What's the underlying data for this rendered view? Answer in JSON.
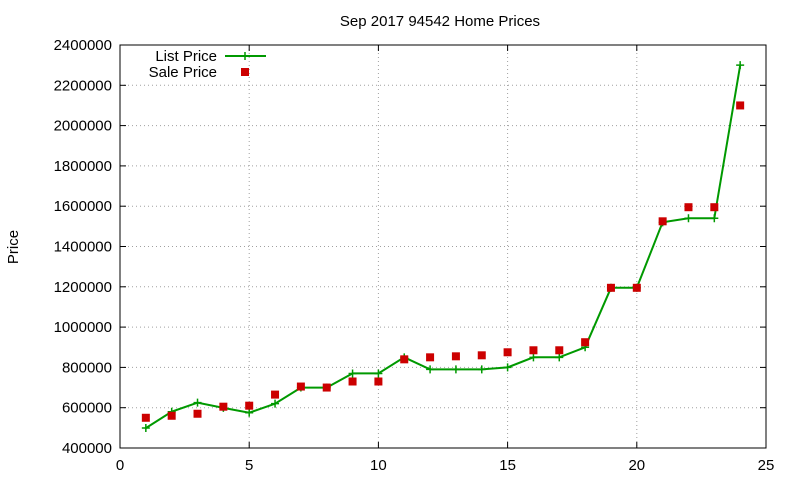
{
  "chart_data": {
    "type": "line",
    "title": "Sep 2017 94542 Home Prices",
    "xlabel": "",
    "ylabel": "Price",
    "xlim": [
      0,
      25
    ],
    "ylim": [
      400000,
      2400000
    ],
    "xticks": [
      "0",
      "5",
      "10",
      "15",
      "20",
      "25"
    ],
    "yticks": [
      "400000",
      "600000",
      "800000",
      "1000000",
      "1200000",
      "1400000",
      "1600000",
      "1800000",
      "2000000",
      "2200000",
      "2400000"
    ],
    "grid": true,
    "legend_position": "top-left",
    "x": [
      1,
      2,
      3,
      4,
      5,
      6,
      7,
      8,
      9,
      10,
      11,
      12,
      13,
      14,
      15,
      16,
      17,
      18,
      19,
      20,
      21,
      22,
      23,
      24
    ],
    "series": [
      {
        "name": "List Price",
        "style": "linespoints",
        "color": "#009900",
        "values": [
          499000,
          580000,
          625000,
          599000,
          575000,
          620000,
          700000,
          700000,
          770000,
          770000,
          850000,
          790000,
          790000,
          790000,
          800000,
          850000,
          850000,
          900000,
          1195000,
          1195000,
          1520000,
          1540000,
          1540000,
          2300000
        ]
      },
      {
        "name": "Sale Price",
        "style": "points",
        "color": "#cc0000",
        "values": [
          550000,
          560000,
          570000,
          605000,
          610000,
          665000,
          705000,
          700000,
          730000,
          730000,
          840000,
          850000,
          855000,
          860000,
          875000,
          885000,
          885000,
          925000,
          1195000,
          1195000,
          1525000,
          1595000,
          1595000,
          2100000
        ]
      }
    ]
  }
}
